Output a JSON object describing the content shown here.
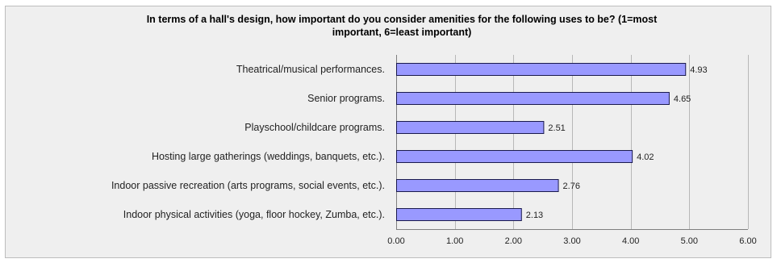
{
  "chart_data": {
    "type": "bar",
    "orientation": "horizontal",
    "title_lines": [
      "In terms of a hall's design, how important do you consider amenities for the following uses to be? (1=most",
      "important, 6=least important)"
    ],
    "categories": [
      "Theatrical/musical performances.",
      "Senior programs.",
      "Playschool/childcare programs.",
      "Hosting large gatherings (weddings, banquets, etc.).",
      "Indoor passive recreation (arts programs, social events, etc.).",
      "Indoor physical activities (yoga, floor hockey, Zumba, etc.)."
    ],
    "values": [
      4.93,
      4.65,
      2.51,
      4.02,
      2.76,
      2.13
    ],
    "value_labels": [
      "4.93",
      "4.65",
      "2.51",
      "4.02",
      "2.76",
      "2.13"
    ],
    "xlim": [
      0,
      6
    ],
    "ticks": [
      0,
      1,
      2,
      3,
      4,
      5,
      6
    ],
    "tick_labels": [
      "0.00",
      "1.00",
      "2.00",
      "3.00",
      "4.00",
      "5.00",
      "6.00"
    ],
    "grid": true,
    "legend": "none",
    "colors": {
      "bar_fill": "#9999ff",
      "bar_stroke": "#1a1a4d",
      "background": "#efefef"
    }
  }
}
